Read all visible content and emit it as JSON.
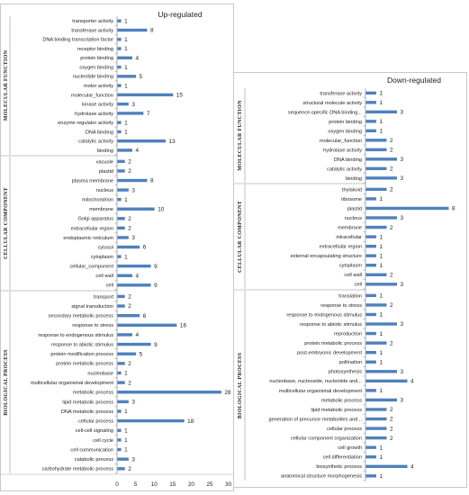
{
  "chart_data": [
    {
      "type": "bar",
      "orientation": "horizontal",
      "title": "Up-regulated",
      "xlim": [
        0,
        30
      ],
      "xticks": [
        "0",
        "5",
        "10",
        "15",
        "20",
        "25",
        "30"
      ],
      "bar_color": "#4f81bd",
      "groups": [
        {
          "name": "MOLECULAR FUNCTION",
          "categories": [
            "transporter activity",
            "transferase activity",
            "DNA binding transcription factor",
            "receptor binding",
            "protein binding",
            "oxygen binding",
            "nucleotide binding",
            "motor activity",
            "molecular_function",
            "kinase activity",
            "hydrolase activity",
            "enzyme regulator activity",
            "DNA binding",
            "catalytic activity",
            "binding"
          ],
          "values": [
            1,
            8,
            1,
            1,
            4,
            1,
            5,
            1,
            15,
            3,
            7,
            1,
            1,
            13,
            4
          ]
        },
        {
          "name": "CELLULAR COMPONENT",
          "categories": [
            "vacuole",
            "plastid",
            "plasma membrane",
            "nucleus",
            "mitochondrion",
            "membrane",
            "Golgi apparatus",
            "extracellular region",
            "endoplasmic reticulum",
            "cytosol",
            "cytoplasm",
            "cellular_component",
            "cell wall",
            "cell"
          ],
          "values": [
            2,
            2,
            8,
            3,
            1,
            10,
            2,
            2,
            3,
            6,
            1,
            9,
            4,
            9
          ]
        },
        {
          "name": "BIOLOGICAL PROCESS",
          "categories": [
            "transport",
            "signal transduction",
            "secondary metabolic process",
            "response to stress",
            "response to endogenous stimulus",
            "response to abiotic stimulus",
            "protein modification process",
            "protein metabolic process",
            "nucleobase",
            "multicellular organismal development",
            "metabolic process",
            "lipid metabolic process",
            "DNA metabolic process",
            "cellular process",
            "cell-cell signaling",
            "cell cycle",
            "cell communication",
            "catabolic process",
            "carbohydrate metabolic process"
          ],
          "values": [
            2,
            2,
            6,
            16,
            4,
            9,
            5,
            2,
            1,
            2,
            28,
            3,
            1,
            18,
            1,
            1,
            1,
            3,
            2
          ]
        }
      ]
    },
    {
      "type": "bar",
      "orientation": "horizontal",
      "title": "Down-regulated",
      "xlim": [
        0,
        8
      ],
      "bar_color": "#4f81bd",
      "groups": [
        {
          "name": "MOLECULAR FUNCTION",
          "categories": [
            "transferase activity",
            "structural molecule activity",
            "sequence-specific DNA binding...",
            "protein binding",
            "oxygen binding",
            "molecular_function",
            "hydrolase activity",
            "DNA binding",
            "catalytic activity",
            "binding"
          ],
          "values": [
            1,
            1,
            3,
            1,
            1,
            2,
            2,
            3,
            2,
            3
          ]
        },
        {
          "name": "CELLULAR COMPONENT",
          "categories": [
            "thylakoid",
            "ribosome",
            "plastid",
            "nucleus",
            "membrane",
            "intracellular",
            "extracellular region",
            "external encapsulating structure",
            "cytoplasm",
            "cell wall",
            "cell"
          ],
          "values": [
            2,
            1,
            8,
            3,
            2,
            1,
            1,
            1,
            1,
            2,
            3
          ]
        },
        {
          "name": "BIOLOGICAL PROCESS",
          "categories": [
            "translation",
            "response to stress",
            "response to endogenous stimulus",
            "response to abiotic stimulus",
            "reproduction",
            "protein metabolic process",
            "post-embryonic development",
            "pollination",
            "photosynthesis",
            "nucleobase, nucleoside, nucleotide and...",
            "multicellular organismal development",
            "metabolic process",
            "lipid metabolic process",
            "generation of precursor metabolites and...",
            "cellular process",
            "cellular component organization",
            "cell growth",
            "cell differentiation",
            "biosynthetic process",
            "anatomical structure morphogenesis"
          ],
          "values": [
            1,
            2,
            1,
            3,
            1,
            2,
            1,
            1,
            3,
            4,
            1,
            3,
            2,
            2,
            2,
            2,
            1,
            1,
            4,
            1
          ]
        }
      ]
    }
  ]
}
